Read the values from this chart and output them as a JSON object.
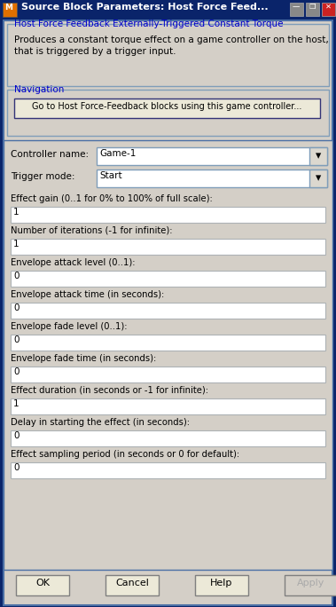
{
  "title_bar_text": "Source Block Parameters: Host Force Feed...",
  "section_title": "Host Force Feedback Externally-Triggered Constant Torque",
  "description_line1": "Produces a constant torque effect on a game controller on the host,",
  "description_line2": "that is triggered by a trigger input.",
  "nav_label": "Navigation",
  "nav_button": "Go to Host Force-Feedback blocks using this game controller...",
  "controller_label": "Controller name:",
  "controller_value": "Game-1",
  "trigger_label": "Trigger mode:",
  "trigger_value": "Start",
  "fields": [
    {
      "label": "Effect gain (0..1 for 0% to 100% of full scale):",
      "value": "1"
    },
    {
      "label": "Number of iterations (-1 for infinite):",
      "value": "1"
    },
    {
      "label": "Envelope attack level (0..1):",
      "value": "0"
    },
    {
      "label": "Envelope attack time (in seconds):",
      "value": "0"
    },
    {
      "label": "Envelope fade level (0..1):",
      "value": "0"
    },
    {
      "label": "Envelope fade time (in seconds):",
      "value": "0"
    },
    {
      "label": "Effect duration (in seconds or -1 for infinite):",
      "value": "1"
    },
    {
      "label": "Delay in starting the effect (in seconds):",
      "value": "0"
    },
    {
      "label": "Effect sampling period (in seconds or 0 for default):",
      "value": "0"
    }
  ],
  "buttons": [
    "OK",
    "Cancel",
    "Help",
    "Apply"
  ],
  "bg_outer": "#d4cfc7",
  "bg_inner": "#d4cfc7",
  "titlebar_bg": "#0a246a",
  "titlebar_fg": "#ffffff",
  "section_title_color": "#0000cc",
  "nav_color": "#0000cc",
  "box_bg": "#ffffff",
  "box_border": "#7f9db9",
  "dropdown_arrow_bg": "#dcd8cf",
  "panel_border": "#4a6fa5",
  "button_bg": "#ece9d8",
  "button_border": "#7f7f7f",
  "apply_fg": "#aaaaaa"
}
